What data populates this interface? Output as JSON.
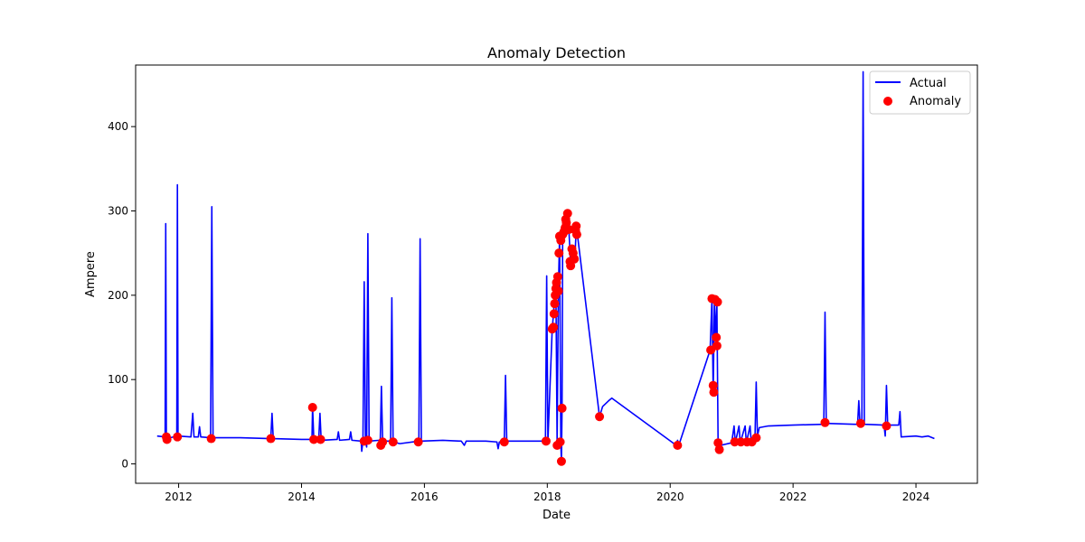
{
  "chart_data": {
    "type": "line",
    "title": "Anomaly Detection",
    "xlabel": "Date",
    "ylabel": "Ampere",
    "xlim": [
      2011.3,
      2025.0
    ],
    "ylim": [
      -23,
      473
    ],
    "x_ticks": [
      2012,
      2014,
      2016,
      2018,
      2020,
      2022,
      2024
    ],
    "y_ticks": [
      0,
      100,
      200,
      300,
      400
    ],
    "grid": false,
    "legend": {
      "placement": "top-right"
    },
    "series": [
      {
        "name": "Actual",
        "kind": "line",
        "color": "#0000ff",
        "points": [
          [
            2011.65,
            33
          ],
          [
            2011.78,
            32
          ],
          [
            2011.79,
            285
          ],
          [
            2011.8,
            32
          ],
          [
            2011.81,
            30
          ],
          [
            2011.97,
            33
          ],
          [
            2011.98,
            331
          ],
          [
            2011.99,
            33
          ],
          [
            2012.2,
            32
          ],
          [
            2012.23,
            60
          ],
          [
            2012.25,
            32
          ],
          [
            2012.32,
            32
          ],
          [
            2012.34,
            44
          ],
          [
            2012.36,
            32
          ],
          [
            2012.52,
            31
          ],
          [
            2012.54,
            305
          ],
          [
            2012.56,
            31
          ],
          [
            2013.0,
            31
          ],
          [
            2013.5,
            30
          ],
          [
            2013.52,
            60
          ],
          [
            2013.54,
            30
          ],
          [
            2014.0,
            29
          ],
          [
            2014.17,
            29
          ],
          [
            2014.18,
            68
          ],
          [
            2014.2,
            29
          ],
          [
            2014.28,
            29
          ],
          [
            2014.3,
            60
          ],
          [
            2014.32,
            28
          ],
          [
            2014.58,
            29
          ],
          [
            2014.6,
            38
          ],
          [
            2014.62,
            28
          ],
          [
            2014.78,
            29
          ],
          [
            2014.8,
            38
          ],
          [
            2014.82,
            28
          ],
          [
            2014.97,
            27
          ],
          [
            2014.98,
            15
          ],
          [
            2015.0,
            28
          ],
          [
            2015.02,
            216
          ],
          [
            2015.04,
            28
          ],
          [
            2015.06,
            20
          ],
          [
            2015.08,
            273
          ],
          [
            2015.1,
            27
          ],
          [
            2015.27,
            28
          ],
          [
            2015.28,
            22
          ],
          [
            2015.3,
            92
          ],
          [
            2015.32,
            27
          ],
          [
            2015.45,
            27
          ],
          [
            2015.47,
            197
          ],
          [
            2015.49,
            26
          ],
          [
            2015.6,
            24
          ],
          [
            2015.91,
            27
          ],
          [
            2015.93,
            267
          ],
          [
            2015.95,
            27
          ],
          [
            2016.3,
            28
          ],
          [
            2016.6,
            27
          ],
          [
            2016.65,
            22
          ],
          [
            2016.68,
            27
          ],
          [
            2017.0,
            27
          ],
          [
            2017.18,
            26
          ],
          [
            2017.2,
            18
          ],
          [
            2017.22,
            26
          ],
          [
            2017.3,
            27
          ],
          [
            2017.32,
            105
          ],
          [
            2017.34,
            27
          ],
          [
            2017.97,
            27
          ],
          [
            2017.99,
            223
          ],
          [
            2018.01,
            27
          ],
          [
            2018.08,
            160
          ],
          [
            2018.1,
            177
          ],
          [
            2018.12,
            200
          ],
          [
            2018.14,
            210
          ],
          [
            2018.16,
            22
          ],
          [
            2018.18,
            205
          ],
          [
            2018.2,
            270
          ],
          [
            2018.22,
            25
          ],
          [
            2018.23,
            3
          ],
          [
            2018.24,
            66
          ],
          [
            2018.25,
            272
          ],
          [
            2018.28,
            268
          ],
          [
            2018.3,
            287
          ],
          [
            2018.32,
            297
          ],
          [
            2018.35,
            280
          ],
          [
            2018.38,
            235
          ],
          [
            2018.42,
            255
          ],
          [
            2018.45,
            243
          ],
          [
            2018.47,
            280
          ],
          [
            2018.49,
            272
          ],
          [
            2018.85,
            56
          ],
          [
            2018.9,
            68
          ],
          [
            2019.0,
            75
          ],
          [
            2019.05,
            78
          ],
          [
            2020.1,
            22
          ],
          [
            2020.12,
            28
          ],
          [
            2020.14,
            22
          ],
          [
            2020.65,
            135
          ],
          [
            2020.68,
            196
          ],
          [
            2020.7,
            85
          ],
          [
            2020.72,
            195
          ],
          [
            2020.74,
            148
          ],
          [
            2020.76,
            192
          ],
          [
            2020.78,
            24
          ],
          [
            2020.8,
            18
          ],
          [
            2020.82,
            22
          ],
          [
            2021.0,
            25
          ],
          [
            2021.04,
            45
          ],
          [
            2021.06,
            25
          ],
          [
            2021.12,
            45
          ],
          [
            2021.14,
            25
          ],
          [
            2021.22,
            45
          ],
          [
            2021.24,
            25
          ],
          [
            2021.3,
            45
          ],
          [
            2021.32,
            25
          ],
          [
            2021.38,
            30
          ],
          [
            2021.4,
            97
          ],
          [
            2021.42,
            33
          ],
          [
            2021.45,
            43
          ],
          [
            2021.6,
            45
          ],
          [
            2022.0,
            46
          ],
          [
            2022.5,
            47
          ],
          [
            2022.52,
            180
          ],
          [
            2022.54,
            48
          ],
          [
            2023.0,
            47
          ],
          [
            2023.05,
            47
          ],
          [
            2023.07,
            75
          ],
          [
            2023.09,
            47
          ],
          [
            2023.12,
            47
          ],
          [
            2023.14,
            465
          ],
          [
            2023.16,
            47
          ],
          [
            2023.48,
            46
          ],
          [
            2023.5,
            33
          ],
          [
            2023.52,
            93
          ],
          [
            2023.54,
            46
          ],
          [
            2023.72,
            46
          ],
          [
            2023.74,
            62
          ],
          [
            2023.76,
            32
          ],
          [
            2024.0,
            33
          ],
          [
            2024.1,
            32
          ],
          [
            2024.2,
            33
          ],
          [
            2024.3,
            30
          ]
        ]
      },
      {
        "name": "Anomaly",
        "kind": "scatter",
        "color": "#ff0000",
        "points": [
          [
            2011.8,
            32
          ],
          [
            2011.81,
            29
          ],
          [
            2011.98,
            32
          ],
          [
            2012.53,
            30
          ],
          [
            2013.5,
            30
          ],
          [
            2014.18,
            67
          ],
          [
            2014.2,
            29
          ],
          [
            2014.31,
            29
          ],
          [
            2015.02,
            27
          ],
          [
            2015.08,
            28
          ],
          [
            2015.29,
            22
          ],
          [
            2015.32,
            26
          ],
          [
            2015.49,
            26
          ],
          [
            2015.9,
            26
          ],
          [
            2017.3,
            26
          ],
          [
            2017.98,
            27
          ],
          [
            2018.08,
            160
          ],
          [
            2018.1,
            162
          ],
          [
            2018.11,
            178
          ],
          [
            2018.12,
            190
          ],
          [
            2018.13,
            200
          ],
          [
            2018.14,
            208
          ],
          [
            2018.15,
            215
          ],
          [
            2018.16,
            22
          ],
          [
            2018.17,
            222
          ],
          [
            2018.18,
            205
          ],
          [
            2018.19,
            250
          ],
          [
            2018.2,
            270
          ],
          [
            2018.21,
            26
          ],
          [
            2018.22,
            265
          ],
          [
            2018.23,
            3
          ],
          [
            2018.24,
            66
          ],
          [
            2018.25,
            272
          ],
          [
            2018.27,
            275
          ],
          [
            2018.29,
            280
          ],
          [
            2018.3,
            290
          ],
          [
            2018.31,
            286
          ],
          [
            2018.33,
            297
          ],
          [
            2018.35,
            278
          ],
          [
            2018.37,
            240
          ],
          [
            2018.38,
            235
          ],
          [
            2018.4,
            255
          ],
          [
            2018.42,
            250
          ],
          [
            2018.44,
            243
          ],
          [
            2018.46,
            277
          ],
          [
            2018.48,
            272
          ],
          [
            2018.47,
            282
          ],
          [
            2018.85,
            56
          ],
          [
            2020.12,
            22
          ],
          [
            2020.66,
            135
          ],
          [
            2020.68,
            196
          ],
          [
            2020.7,
            93
          ],
          [
            2020.71,
            85
          ],
          [
            2020.73,
            195
          ],
          [
            2020.75,
            150
          ],
          [
            2020.76,
            140
          ],
          [
            2020.77,
            192
          ],
          [
            2020.78,
            25
          ],
          [
            2020.8,
            17
          ],
          [
            2021.05,
            26
          ],
          [
            2021.15,
            26
          ],
          [
            2021.25,
            26
          ],
          [
            2021.33,
            26
          ],
          [
            2021.4,
            31
          ],
          [
            2022.52,
            49
          ],
          [
            2023.1,
            48
          ],
          [
            2023.52,
            45
          ]
        ]
      }
    ]
  }
}
